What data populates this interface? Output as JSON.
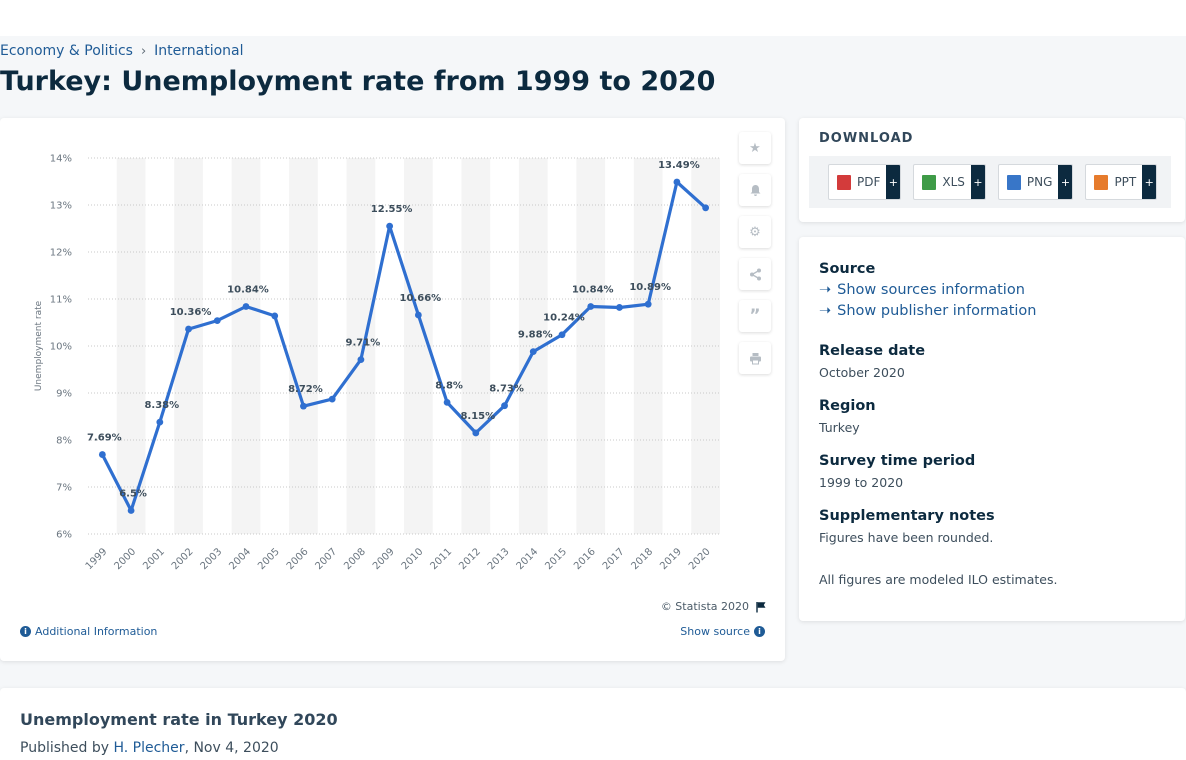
{
  "breadcrumb": {
    "items": [
      "Economy & Politics",
      "International"
    ]
  },
  "page_title": "Turkey: Unemployment rate from 1999 to 2020",
  "chart_data": {
    "type": "line",
    "title": "",
    "xlabel": "",
    "ylabel": "Unemployment rate",
    "x": [
      "1999",
      "2000",
      "2001",
      "2002",
      "2003",
      "2004",
      "2005",
      "2006",
      "2007",
      "2008",
      "2009",
      "2010",
      "2011",
      "2012",
      "2013",
      "2014",
      "2015",
      "2016",
      "2017",
      "2018",
      "2019",
      "2020"
    ],
    "series": [
      {
        "values": [
          7.69,
          6.5,
          8.38,
          10.36,
          10.54,
          10.84,
          10.64,
          8.72,
          8.87,
          9.71,
          12.55,
          10.66,
          8.8,
          8.15,
          8.73,
          9.88,
          10.24,
          10.84,
          10.82,
          10.89,
          13.49,
          12.94
        ]
      }
    ],
    "data_labels": [
      {
        "i": 0,
        "text": "7.69%"
      },
      {
        "i": 1,
        "text": "6.5%"
      },
      {
        "i": 2,
        "text": "8.38%"
      },
      {
        "i": 3,
        "text": "10.36%"
      },
      {
        "i": 5,
        "text": "10.84%"
      },
      {
        "i": 7,
        "text": "8.72%"
      },
      {
        "i": 9,
        "text": "9.71%"
      },
      {
        "i": 10,
        "text": "12.55%"
      },
      {
        "i": 11,
        "text": "10.66%"
      },
      {
        "i": 12,
        "text": "8.8%"
      },
      {
        "i": 13,
        "text": "8.15%"
      },
      {
        "i": 14,
        "text": "8.73%"
      },
      {
        "i": 15,
        "text": "9.88%"
      },
      {
        "i": 16,
        "text": "10.24%"
      },
      {
        "i": 17,
        "text": "10.84%"
      },
      {
        "i": 19,
        "text": "10.89%"
      },
      {
        "i": 20,
        "text": "13.49%"
      }
    ],
    "y_ticks": [
      {
        "value": 6,
        "label": "6%"
      },
      {
        "value": 7,
        "label": "7%"
      },
      {
        "value": 8,
        "label": "8%"
      },
      {
        "value": 9,
        "label": "9%"
      },
      {
        "value": 10,
        "label": "10%"
      },
      {
        "value": 11,
        "label": "11%"
      },
      {
        "value": 12,
        "label": "12%"
      },
      {
        "value": 13,
        "label": "13%"
      },
      {
        "value": 14,
        "label": "14%"
      }
    ],
    "ylim": [
      6,
      14
    ],
    "grid": true,
    "line_color": "#2f6fd0"
  },
  "chart_footer": {
    "copyright": "© Statista 2020",
    "additional_info": "Additional Information",
    "show_source": "Show source"
  },
  "download": {
    "title": "DOWNLOAD",
    "buttons": [
      {
        "label": "PDF",
        "color": "#d33b3b"
      },
      {
        "label": "XLS",
        "color": "#3e9b47"
      },
      {
        "label": "PNG",
        "color": "#3876c8"
      },
      {
        "label": "PPT",
        "color": "#e67b2c"
      }
    ],
    "plus": "+"
  },
  "meta": {
    "source_heading": "Source",
    "show_sources": "Show sources information",
    "show_publisher": "Show publisher information",
    "release_heading": "Release date",
    "release_value": "October 2020",
    "region_heading": "Region",
    "region_value": "Turkey",
    "period_heading": "Survey time period",
    "period_value": "1999 to 2020",
    "notes_heading": "Supplementary notes",
    "notes_value": "Figures have been rounded.",
    "ilo_note": "All figures are modeled ILO estimates."
  },
  "publication": {
    "title": "Unemployment rate in Turkey 2020",
    "published_by": "Published by",
    "author": "H. Plecher",
    "date": ", Nov 4, 2020"
  }
}
